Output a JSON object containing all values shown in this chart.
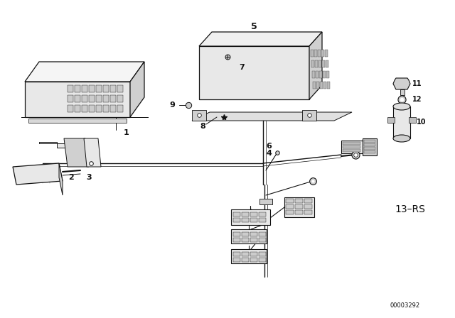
{
  "bg_color": "#ffffff",
  "line_color": "#000000",
  "watermark": "00003292",
  "label_13rs": "13–RS",
  "fg": "#111111",
  "gray_light": "#e8e8e8",
  "gray_mid": "#d0d0d0",
  "gray_dark": "#b0b0b0"
}
